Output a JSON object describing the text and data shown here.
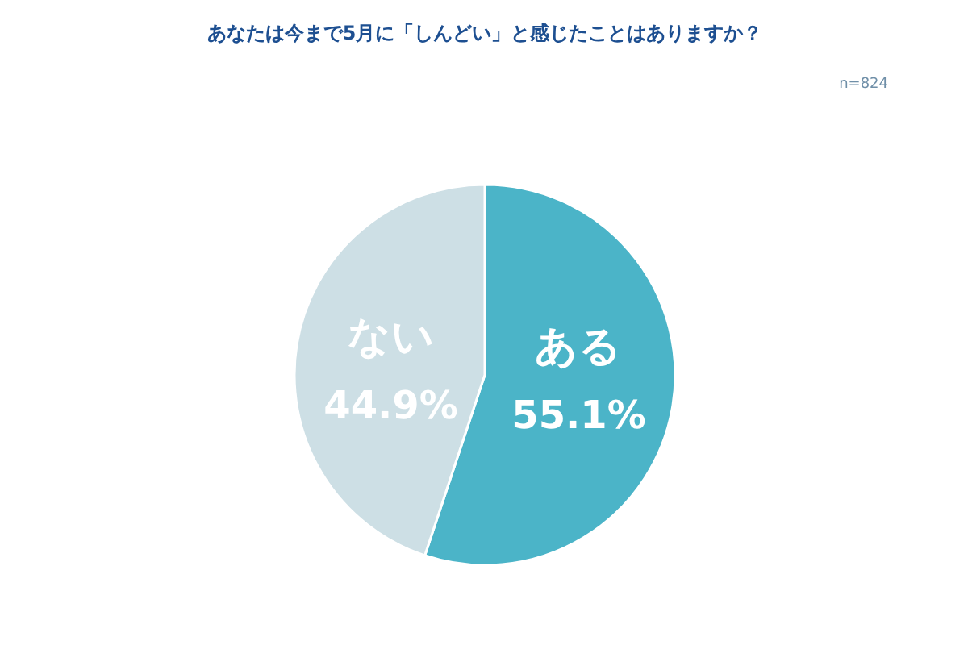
{
  "chart_data": {
    "type": "pie",
    "title": "あなたは今まで5月に「しんどい」と感じたことはありますか？",
    "annotations": [
      "n=824"
    ],
    "categories": [
      "ある",
      "ない"
    ],
    "values": [
      55.1,
      44.9
    ],
    "colors": [
      "#4bb4c8",
      "#cddfe5"
    ],
    "value_labels": [
      "55.1%",
      "44.9%"
    ]
  }
}
